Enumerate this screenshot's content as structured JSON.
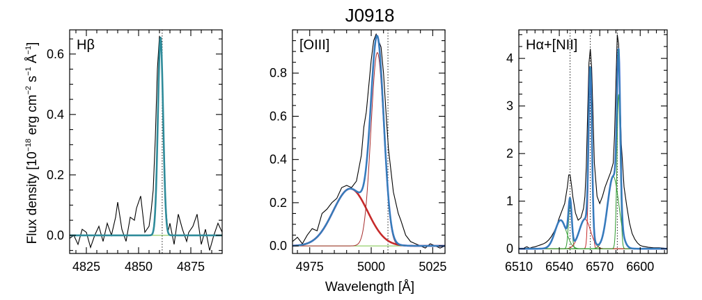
{
  "figure": {
    "title": "J0918",
    "xlabel": "Wavelength [Å]",
    "ylabel_main": "Flux density [10",
    "ylabel_exp": "−18",
    "ylabel_rest": " erg cm",
    "ylabel_exp2": "−2",
    "ylabel_rest2": " s",
    "ylabel_exp3": "−1",
    "ylabel_rest3": " Å",
    "ylabel_exp4": "−1",
    "ylabel_end": "]"
  },
  "colors": {
    "data": "#000000",
    "total_fit": "#3f6fd8",
    "hb_fit": "#2e8b9a",
    "broad": "#c62a2a",
    "narrow": "#a52a2a",
    "nii": "#2e9a2e",
    "halpha_narrow": "#c62a2a",
    "baseline": "#7ac043"
  },
  "chart_data": [
    {
      "type": "line",
      "panel": "hbeta",
      "label": "Hβ",
      "xlim": [
        4817,
        4890
      ],
      "ylim": [
        -0.06,
        0.68
      ],
      "xticks": [
        4825,
        4850,
        4875
      ],
      "yticks": [
        0.0,
        0.2,
        0.4,
        0.6
      ],
      "ytick_labels": [
        "0.0",
        "0.2",
        "0.4",
        "0.6"
      ],
      "vlines": [
        4861.3
      ],
      "gauss": [
        {
          "role": "fit",
          "amp": 0.655,
          "mu": 4860.5,
          "sigma": 1.25
        }
      ],
      "data_x": [
        4817,
        4819,
        4821,
        4823,
        4825,
        4827,
        4829,
        4831,
        4833,
        4835,
        4837,
        4839,
        4840,
        4842,
        4844,
        4846,
        4848,
        4849,
        4851,
        4853,
        4855,
        4856,
        4857,
        4858,
        4859,
        4860,
        4861,
        4862,
        4863,
        4864,
        4865,
        4867,
        4869,
        4871,
        4873,
        4874,
        4876,
        4878,
        4880,
        4882,
        4884,
        4886,
        4888,
        4890
      ],
      "data_y": [
        -0.01,
        0.0,
        -0.03,
        0.02,
        0.01,
        -0.04,
        0.0,
        0.03,
        -0.02,
        0.04,
        0.0,
        0.06,
        0.11,
        0.02,
        -0.02,
        0.06,
        0.05,
        0.09,
        0.13,
        0.01,
        0.03,
        0.08,
        0.15,
        0.32,
        0.55,
        0.66,
        0.6,
        0.34,
        0.1,
        0.01,
        0.04,
        -0.03,
        0.07,
        0.02,
        -0.02,
        0.01,
        0.03,
        0.07,
        -0.03,
        0.02,
        -0.05,
        0.0,
        0.04,
        0.01
      ]
    },
    {
      "type": "line",
      "panel": "oiii",
      "label": "[OIII]",
      "xlim": [
        4968,
        5030
      ],
      "ylim": [
        -0.035,
        1.0
      ],
      "xticks": [
        4975,
        5000,
        5025
      ],
      "yticks": [
        0.0,
        0.2,
        0.4,
        0.6,
        0.8
      ],
      "ytick_labels": [
        "0.0",
        "0.2",
        "0.4",
        "0.6",
        "0.8"
      ],
      "vlines": [
        5006.8
      ],
      "gauss": [
        {
          "role": "broad",
          "amp": 0.265,
          "mu": 4991.5,
          "sigma": 7.0
        },
        {
          "role": "narrow",
          "amp": 0.895,
          "mu": 5002.5,
          "sigma": 2.6
        }
      ],
      "data_x": [
        4968,
        4970,
        4972,
        4974,
        4976,
        4978,
        4980,
        4982,
        4984,
        4986,
        4988,
        4990,
        4992,
        4994,
        4996,
        4997,
        4998,
        4999,
        5000,
        5001,
        5002,
        5003,
        5004,
        5005,
        5006,
        5007,
        5008,
        5009,
        5010,
        5011,
        5012,
        5014,
        5016,
        5018,
        5020,
        5022,
        5024,
        5026,
        5028,
        5030
      ],
      "data_y": [
        0.02,
        0.04,
        0.01,
        0.05,
        0.08,
        0.07,
        0.15,
        0.17,
        0.2,
        0.22,
        0.27,
        0.28,
        0.27,
        0.3,
        0.42,
        0.55,
        0.62,
        0.74,
        0.86,
        0.95,
        0.98,
        0.95,
        0.92,
        0.8,
        0.62,
        0.45,
        0.35,
        0.25,
        0.2,
        0.15,
        0.12,
        0.05,
        0.02,
        0.01,
        0.0,
        -0.01,
        0.01,
        0.0,
        -0.01,
        0.0
      ]
    },
    {
      "type": "line",
      "panel": "halpha",
      "label": "Hα+[NII]",
      "xlim": [
        6510,
        6620
      ],
      "ylim": [
        -0.1,
        4.6
      ],
      "xticks": [
        6510,
        6540,
        6570,
        6600
      ],
      "yticks": [
        0,
        1,
        2,
        3,
        4
      ],
      "ytick_labels": [
        "0",
        "1",
        "2",
        "3",
        "4"
      ],
      "vlines": [
        6548,
        6563,
        6583
      ],
      "gauss": [
        {
          "role": "nii",
          "amp": 0.6,
          "mu": 6541,
          "sigma": 4.2
        },
        {
          "role": "nii",
          "amp": 0.9,
          "mu": 6548,
          "sigma": 1.2
        },
        {
          "role": "halpha_narrow",
          "amp": 0.62,
          "mu": 6559,
          "sigma": 4.2
        },
        {
          "role": "halpha_narrow",
          "amp": 3.45,
          "mu": 6563,
          "sigma": 1.2
        },
        {
          "role": "nii",
          "amp": 1.52,
          "mu": 6580,
          "sigma": 4.2
        },
        {
          "role": "nii",
          "amp": 3.25,
          "mu": 6584,
          "sigma": 1.2
        }
      ],
      "data_x": [
        6514,
        6516,
        6518,
        6520,
        6522,
        6524,
        6526,
        6528,
        6530,
        6532,
        6534,
        6536,
        6538,
        6540,
        6542,
        6544,
        6546,
        6547,
        6548,
        6549,
        6550,
        6552,
        6554,
        6556,
        6558,
        6559,
        6560,
        6561,
        6562,
        6563,
        6564,
        6565,
        6566,
        6568,
        6570,
        6572,
        6574,
        6576,
        6578,
        6580,
        6581,
        6582,
        6583,
        6584,
        6585,
        6586,
        6588,
        6590,
        6592,
        6594,
        6596,
        6598,
        6600,
        6602,
        6606,
        6610,
        6614,
        6618
      ],
      "data_y": [
        0.02,
        0.04,
        0.01,
        0.03,
        0.04,
        0.06,
        0.08,
        0.1,
        0.13,
        0.18,
        0.25,
        0.35,
        0.48,
        0.65,
        0.8,
        0.95,
        1.3,
        1.55,
        1.55,
        1.35,
        1.1,
        0.75,
        0.6,
        0.65,
        0.85,
        1.1,
        1.7,
        2.8,
        3.9,
        4.2,
        3.8,
        2.8,
        1.8,
        1.1,
        0.95,
        1.1,
        1.3,
        1.45,
        1.6,
        1.8,
        2.4,
        3.5,
        4.5,
        4.3,
        3.2,
        2.2,
        1.3,
        0.9,
        0.55,
        0.32,
        0.2,
        0.12,
        0.07,
        0.05,
        0.03,
        0.02,
        0.02,
        0.01
      ]
    }
  ]
}
